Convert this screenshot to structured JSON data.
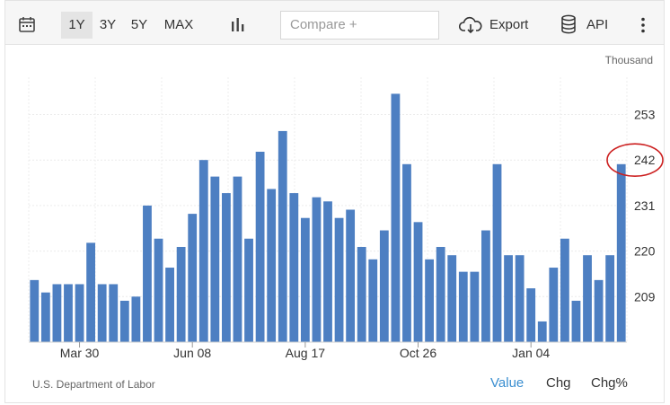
{
  "toolbar": {
    "calendar_icon": "calendar-icon",
    "ranges": [
      "1Y",
      "3Y",
      "5Y",
      "MAX"
    ],
    "active_range": "1Y",
    "chart_type_icon": "bar-chart-icon",
    "compare_placeholder": "Compare +",
    "export_label": "Export",
    "export_icon": "cloud-download-icon",
    "api_label": "API",
    "api_icon": "database-icon",
    "more_icon": "vertical-dots-icon"
  },
  "chart_data": {
    "type": "bar",
    "unit_label": "Thousand",
    "bar_color": "#4d7fc2",
    "highlight_color": "#cc1f1f",
    "highlight_label": "242",
    "ylim": [
      198,
      262
    ],
    "yticks": [
      209,
      220,
      231,
      242,
      253
    ],
    "xtick_labels": [
      "Mar 30",
      "Jun 08",
      "Aug 17",
      "Oct 26",
      "Jan 04"
    ],
    "xtick_indices": [
      4,
      14,
      24,
      34,
      44
    ],
    "values": [
      213,
      210,
      212,
      212,
      212,
      222,
      212,
      212,
      208,
      209,
      231,
      223,
      216,
      221,
      229,
      242,
      238,
      234,
      238,
      223,
      244,
      235,
      249,
      234,
      228,
      233,
      232,
      228,
      230,
      221,
      218,
      225,
      258,
      241,
      227,
      218,
      221,
      219,
      215,
      215,
      225,
      241,
      219,
      219,
      211,
      203,
      216,
      223,
      208,
      219,
      213,
      219,
      241
    ],
    "grid": true
  },
  "footer": {
    "source": "U.S. Department of Labor",
    "tabs": [
      "Value",
      "Chg",
      "Chg%"
    ],
    "active_tab": "Value"
  }
}
